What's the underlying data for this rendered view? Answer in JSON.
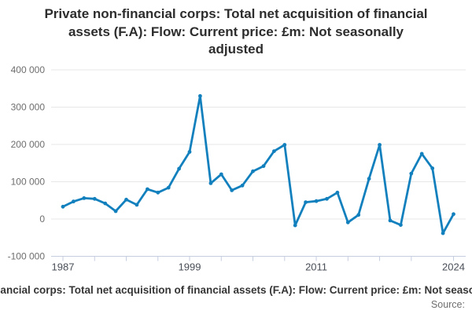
{
  "title": {
    "text": "Private non-financial corps: Total net acquisition of financial assets (F.A): Flow: Current price: £m: Not seasonally adjusted",
    "lines": [
      "Private non-financial corps: Total net acquisition of financial",
      "assets (F.A): Flow: Current price: £m: Not seasonally",
      "adjusted"
    ]
  },
  "chart_data": {
    "type": "line",
    "title": "Private non-financial corps: Total net acquisition of financial assets (F.A): Flow: Current price: £m: Not seasonally adjusted",
    "x": [
      1987,
      1988,
      1989,
      1990,
      1991,
      1992,
      1993,
      1994,
      1995,
      1996,
      1997,
      1998,
      1999,
      2000,
      2001,
      2002,
      2003,
      2004,
      2005,
      2006,
      2007,
      2008,
      2009,
      2010,
      2011,
      2012,
      2013,
      2014,
      2015,
      2016,
      2017,
      2018,
      2019,
      2020,
      2021,
      2022,
      2023,
      2024
    ],
    "series": [
      {
        "name": "Private non-financial corps: Total net acquisition of financial assets (F.A): Flow: Current price: £m: Not seasonally adjusted",
        "color": "#1380be",
        "values": [
          33000,
          47000,
          56000,
          54000,
          42000,
          21000,
          52000,
          38000,
          80000,
          71000,
          84000,
          135000,
          180000,
          330000,
          96000,
          120000,
          77000,
          90000,
          128000,
          142000,
          182000,
          199000,
          -17000,
          45000,
          48000,
          54000,
          71000,
          -9000,
          11000,
          108000,
          199000,
          -4000,
          -16000,
          122000,
          175000,
          136000,
          -38000,
          13000
        ]
      }
    ],
    "xlim": [
      1987,
      2024
    ],
    "ylim": [
      -100000,
      400000
    ],
    "y_ticks": [
      -100000,
      0,
      100000,
      200000,
      300000,
      400000
    ],
    "y_tick_labels": [
      "-100 000",
      "0",
      "100 000",
      "200 000",
      "300 000",
      "400 000"
    ],
    "x_ticks": [
      1987,
      1990,
      1993,
      1996,
      1999,
      2002,
      2005,
      2008,
      2011,
      2014,
      2017,
      2020,
      2024
    ],
    "x_labeled_ticks": [
      {
        "year": 1987,
        "label": "1987"
      },
      {
        "year": 1999,
        "label": "1999"
      },
      {
        "year": 2011,
        "label": "2011"
      },
      {
        "year": 2024,
        "label": "2024"
      }
    ],
    "grid": true,
    "marker": "circle",
    "legend_position": "bottom",
    "colors": {
      "line": "#1380be",
      "gridline": "#e7e7e7",
      "axis": "#c5cde1",
      "y_label": "#6e6e6e",
      "x_label": "#4a4f58"
    }
  },
  "footer": {
    "caption": "Private non-financial corps: Total net acquisition of financial assets (F.A): Flow: Current price: £m: Not seasonally adjusted",
    "source": "Source:"
  }
}
